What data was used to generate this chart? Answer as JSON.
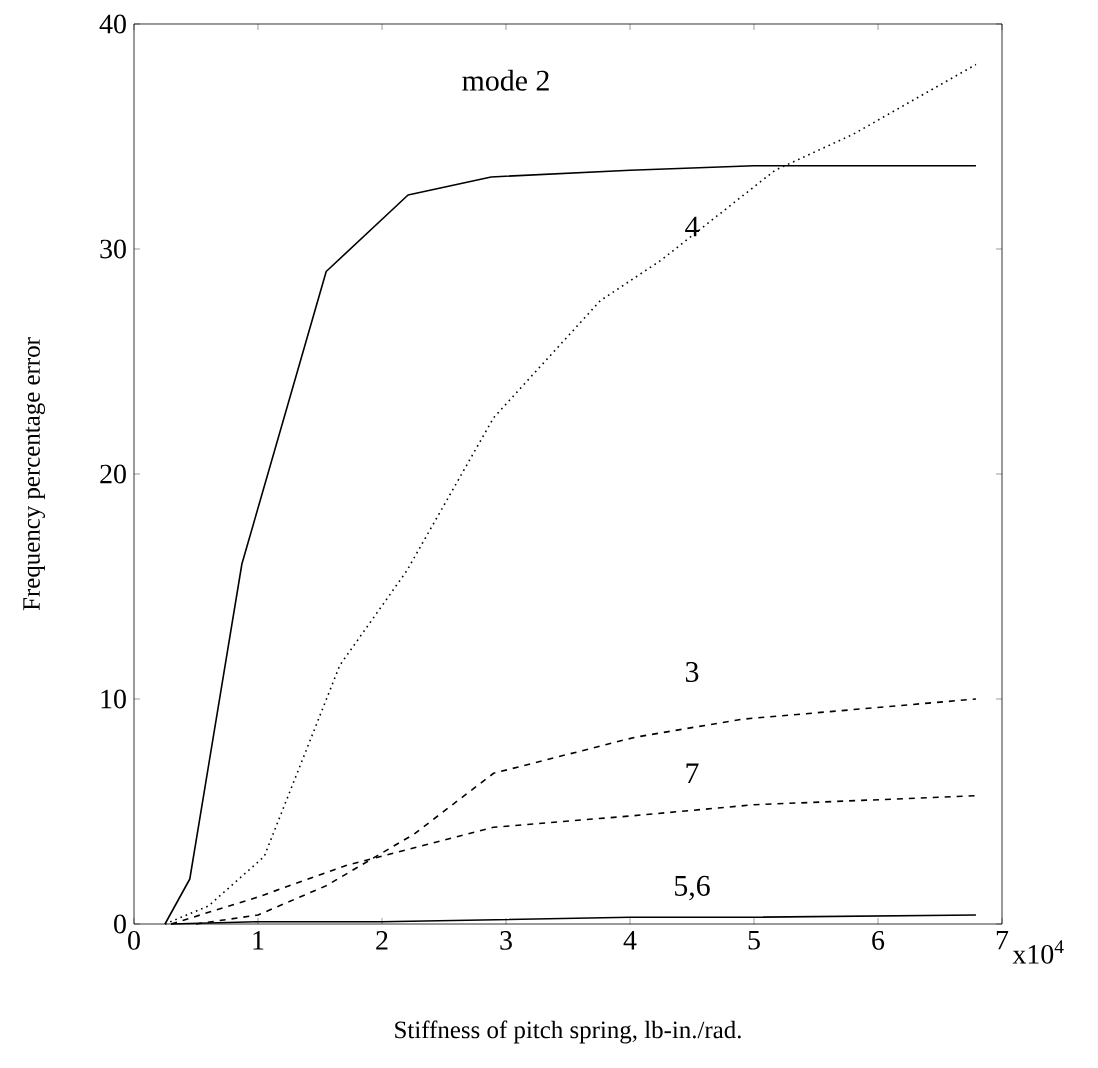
{
  "chart_data": {
    "type": "line",
    "xlabel": "Stiffness of pitch spring, lb-in./rad.",
    "ylabel": "Frequency percentage error",
    "xlim": [
      0,
      7
    ],
    "ylim": [
      0,
      40
    ],
    "xticks": [
      0,
      1,
      2,
      3,
      4,
      5,
      6,
      7
    ],
    "yticks": [
      0,
      10,
      20,
      30,
      40
    ],
    "annotations": [
      "x10$^{4}$"
    ],
    "grid": false,
    "legend": false,
    "marker": "none",
    "series": [
      {
        "name": "mode 2",
        "color": "#000000",
        "line_style": "solid",
        "x": [
          0.25,
          0.45,
          0.87,
          1.55,
          2.21,
          2.88,
          4.0,
          5.0,
          6.79
        ],
        "values": [
          0,
          2,
          16,
          29,
          32.4,
          33.2,
          33.5,
          33.7,
          33.7
        ]
      },
      {
        "name": "4",
        "color": "#000000",
        "line_style": "dotted",
        "x": [
          0.25,
          0.6,
          1.05,
          1.66,
          2.2,
          2.9,
          3.76,
          4.25,
          5.17,
          5.8,
          6.79
        ],
        "values": [
          0,
          0.8,
          3,
          11.5,
          15.7,
          22.5,
          27.7,
          29.5,
          33.5,
          35.1,
          38.2
        ]
      },
      {
        "name": "3",
        "color": "#000000",
        "line_style": "dashed",
        "x": [
          0.5,
          1.0,
          1.55,
          2.26,
          2.9,
          4.04,
          4.9,
          6.79
        ],
        "values": [
          0,
          0.4,
          1.7,
          4.0,
          6.7,
          8.3,
          9.1,
          10.0
        ]
      },
      {
        "name": "7",
        "color": "#000000",
        "line_style": "dashed",
        "x": [
          0.3,
          1.0,
          1.71,
          2.9,
          4.0,
          5.0,
          6.79
        ],
        "values": [
          0,
          1.2,
          2.6,
          4.3,
          4.8,
          5.3,
          5.7
        ]
      },
      {
        "name": "5,6",
        "color": "#000000",
        "line_style": "solid",
        "x": [
          0.3,
          1.0,
          2.0,
          3.0,
          4.0,
          5.0,
          6.79
        ],
        "values": [
          0,
          0.1,
          0.1,
          0.2,
          0.3,
          0.3,
          0.4
        ]
      }
    ]
  }
}
